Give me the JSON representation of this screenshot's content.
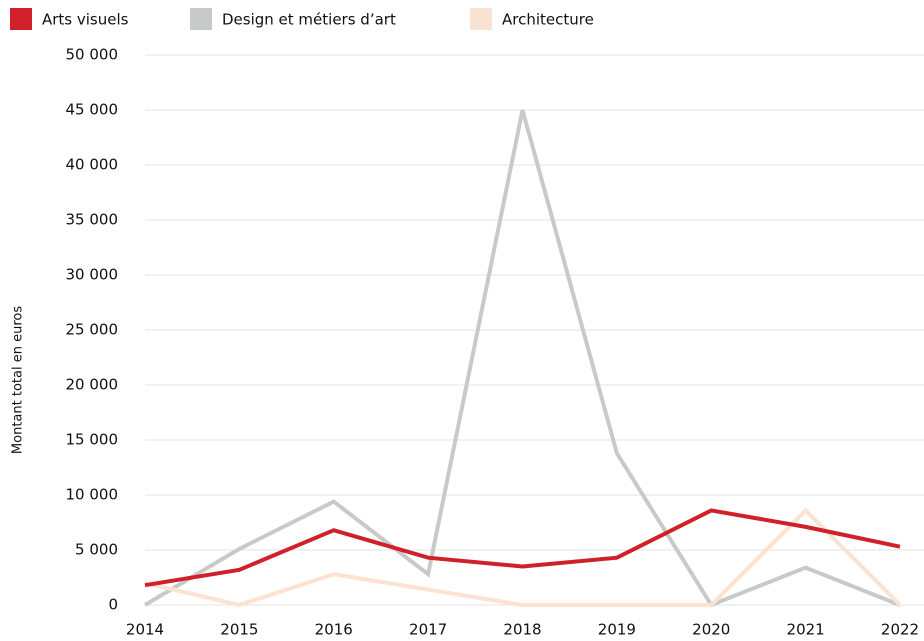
{
  "chart_data": {
    "type": "line",
    "y_label": "Montant total en euros",
    "categories": [
      "2014",
      "2015",
      "2016",
      "2017",
      "2018",
      "2019",
      "2020",
      "2021",
      "2022"
    ],
    "series": [
      {
        "name": "Arts visuels",
        "color": "#d0202a",
        "values": [
          1800,
          3200,
          6800,
          4300,
          3500,
          4300,
          8600,
          7100,
          5300
        ]
      },
      {
        "name": "Design et métiers d’art",
        "color": "#c8cac9",
        "values": [
          0,
          5100,
          9400,
          2800,
          45000,
          13800,
          0,
          3400,
          0
        ]
      },
      {
        "name": "Architecture",
        "color": "#fbe3d3",
        "values": [
          2000,
          0,
          2800,
          1400,
          0,
          0,
          0,
          8600,
          0
        ]
      }
    ],
    "ylim": [
      0,
      50000
    ],
    "yticks": [
      {
        "value": 0,
        "label": "0"
      },
      {
        "value": 5000,
        "label": "5 000"
      },
      {
        "value": 10000,
        "label": "10 000"
      },
      {
        "value": 15000,
        "label": "15 000"
      },
      {
        "value": 20000,
        "label": "20 000"
      },
      {
        "value": 25000,
        "label": "25 000"
      },
      {
        "value": 30000,
        "label": "30 000"
      },
      {
        "value": 35000,
        "label": "35 000"
      },
      {
        "value": 40000,
        "label": "40 000"
      },
      {
        "value": 45000,
        "label": "45 000"
      },
      {
        "value": 50000,
        "label": "50 000"
      }
    ],
    "grid": true
  }
}
